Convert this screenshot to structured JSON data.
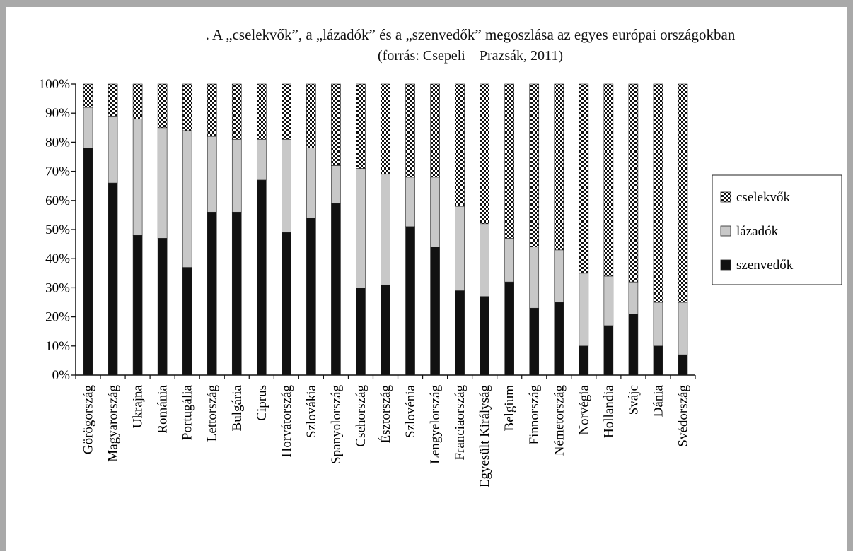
{
  "chart_data": {
    "type": "bar",
    "stacked": true,
    "title": ". A „cselekvők”, a „lázadók” és a „szenvedők” megoszlása az egyes európai országokban",
    "subtitle": "(forrás: Csepeli – Prazsák, 2011)",
    "ylim": [
      0,
      100
    ],
    "yticks": [
      "0%",
      "10%",
      "20%",
      "30%",
      "40%",
      "50%",
      "60%",
      "70%",
      "80%",
      "90%",
      "100%"
    ],
    "legend_position": "right",
    "categories": [
      "Görögország",
      "Magyarország",
      "Ukrajna",
      "Románia",
      "Portugália",
      "Lettország",
      "Bulgária",
      "Ciprus",
      "Horvátország",
      "Szlovákia",
      "Spanyolország",
      "Csehország",
      "Észtország",
      "Szlovénia",
      "Lengyelország",
      "Franciaország",
      "Egyesült Királyság",
      "Belgium",
      "Finnország",
      "Németország",
      "Norvégia",
      "Hollandia",
      "Svájc",
      "Dánia",
      "Svédország"
    ],
    "series": [
      {
        "name": "szenvedők",
        "color": "#111111",
        "values": [
          78,
          66,
          48,
          47,
          37,
          56,
          56,
          67,
          49,
          54,
          59,
          30,
          31,
          51,
          44,
          29,
          27,
          32,
          23,
          25,
          10,
          17,
          21,
          10,
          7
        ]
      },
      {
        "name": "lázadók",
        "color": "#c8c8c8",
        "values": [
          14,
          23,
          40,
          38,
          47,
          26,
          25,
          14,
          32,
          24,
          13,
          41,
          38,
          17,
          24,
          29,
          25,
          15,
          21,
          18,
          25,
          17,
          11,
          15,
          18
        ]
      },
      {
        "name": "cselekvők",
        "pattern": "checker",
        "values": [
          8,
          11,
          12,
          15,
          16,
          18,
          19,
          19,
          19,
          22,
          28,
          29,
          31,
          32,
          32,
          42,
          48,
          53,
          56,
          57,
          65,
          66,
          68,
          75,
          75
        ]
      }
    ],
    "legend": [
      "cselekvők",
      "lázadók",
      "szenvedők"
    ]
  }
}
